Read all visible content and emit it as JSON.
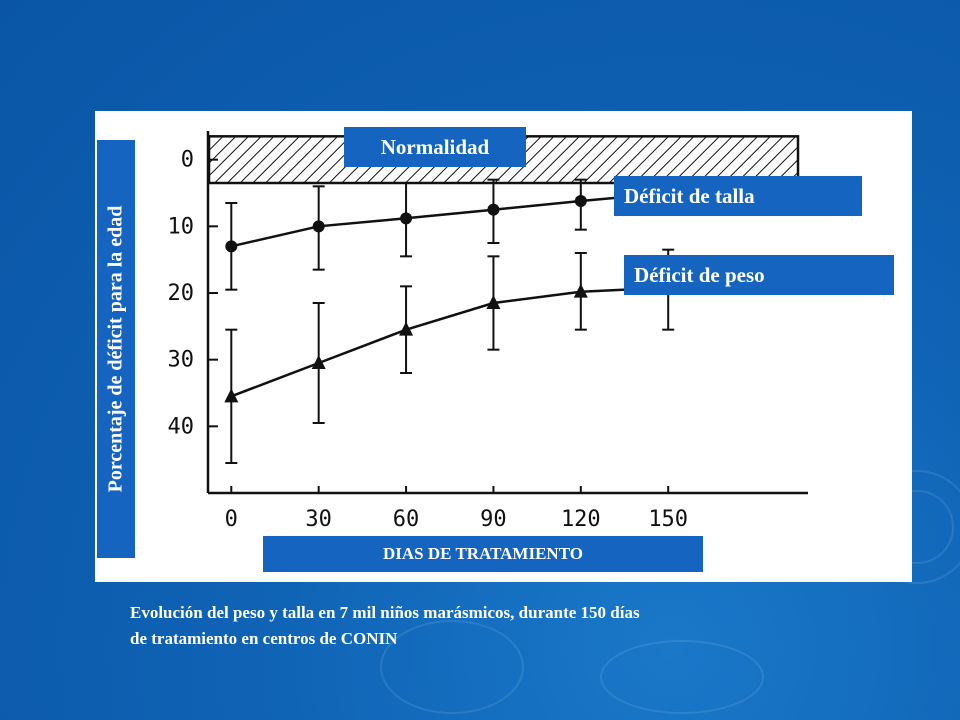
{
  "colors": {
    "background": "#0f62b4",
    "label_box": "#1565c0",
    "panel": "#ffffff",
    "ink": "#111111"
  },
  "labels": {
    "normalidad": "Normalidad",
    "deficit_talla": "Déficit de talla",
    "deficit_peso": "Déficit de peso",
    "xlabel": "DIAS DE TRATAMIENTO",
    "ylabel": "Porcentaje de déficit para la edad"
  },
  "caption": {
    "line1": "Evolución del peso y talla en 7 mil niños marásmicos, durante 150 días",
    "line2": "de tratamiento en centros de CONIN"
  },
  "chart_data": {
    "type": "line",
    "x": [
      0,
      30,
      60,
      90,
      120,
      150
    ],
    "xticks": [
      "0",
      "30",
      "60",
      "90",
      "120",
      "150"
    ],
    "yticks": [
      "0",
      "10",
      "20",
      "30",
      "40"
    ],
    "ytick_values": [
      0,
      10,
      20,
      30,
      40
    ],
    "xlim": [
      -8,
      198
    ],
    "ylim": [
      -4,
      50
    ],
    "y_inverted": true,
    "normal_band": [
      -3.5,
      3.5
    ],
    "xlabel": "DIAS DE TRATAMIENTO",
    "ylabel": "Porcentaje de déficit para la edad",
    "series": [
      {
        "name": "Déficit de talla",
        "marker": "circle",
        "values": [
          13,
          10,
          8.8,
          7.5,
          6.2,
          5
        ],
        "err_low": [
          6.5,
          4,
          3.5,
          3,
          3,
          3
        ],
        "err_high": [
          19.5,
          16.5,
          14.5,
          12.5,
          10.5,
          8
        ]
      },
      {
        "name": "Déficit de peso",
        "marker": "triangle",
        "values": [
          35.5,
          30.5,
          25.5,
          21.5,
          19.8,
          19.2
        ],
        "err_low": [
          25.5,
          21.5,
          19,
          14.5,
          14,
          13.5
        ],
        "err_high": [
          45.5,
          39.5,
          32,
          28.5,
          25.5,
          25.5
        ]
      }
    ]
  }
}
